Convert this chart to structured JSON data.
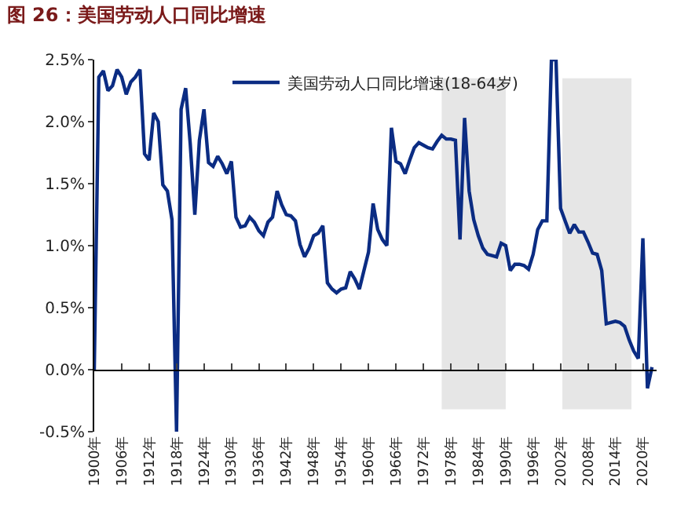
{
  "chart_data": {
    "type": "line",
    "title": "图 26：美国劳动人口同比增速",
    "x": [
      1900,
      1901,
      1902,
      1903,
      1904,
      1905,
      1906,
      1907,
      1908,
      1909,
      1910,
      1911,
      1912,
      1913,
      1914,
      1915,
      1916,
      1917,
      1918,
      1919,
      1920,
      1921,
      1922,
      1923,
      1924,
      1925,
      1926,
      1927,
      1928,
      1929,
      1930,
      1931,
      1932,
      1933,
      1934,
      1935,
      1936,
      1937,
      1938,
      1939,
      1940,
      1941,
      1942,
      1943,
      1944,
      1945,
      1946,
      1947,
      1948,
      1949,
      1950,
      1951,
      1952,
      1953,
      1954,
      1955,
      1956,
      1957,
      1958,
      1959,
      1960,
      1961,
      1962,
      1963,
      1964,
      1965,
      1966,
      1967,
      1968,
      1969,
      1970,
      1971,
      1972,
      1973,
      1974,
      1975,
      1976,
      1977,
      1978,
      1979,
      1980,
      1981,
      1982,
      1983,
      1984,
      1985,
      1986,
      1987,
      1988,
      1989,
      1990,
      1991,
      1992,
      1993,
      1994,
      1995,
      1996,
      1997,
      1998,
      1999,
      2000,
      2001,
      2002,
      2003,
      2004,
      2005,
      2006,
      2007,
      2008,
      2009,
      2010,
      2011,
      2012,
      2013,
      2014,
      2015,
      2016,
      2017,
      2018,
      2019,
      2020,
      2021,
      2022
    ],
    "series": [
      {
        "name": "美国劳动人口同比增速(18-64岁)",
        "color": "#0b2c83",
        "values": [
          0,
          2.36,
          2.41,
          2.25,
          2.29,
          2.42,
          2.36,
          2.22,
          2.32,
          2.36,
          2.42,
          1.74,
          1.69,
          2.07,
          2.0,
          1.49,
          1.44,
          1.21,
          -0.5,
          2.1,
          2.27,
          1.82,
          1.25,
          1.85,
          2.1,
          1.67,
          1.64,
          1.72,
          1.66,
          1.58,
          1.68,
          1.23,
          1.15,
          1.16,
          1.23,
          1.19,
          1.12,
          1.08,
          1.19,
          1.23,
          1.44,
          1.33,
          1.25,
          1.24,
          1.2,
          1.01,
          0.91,
          0.98,
          1.08,
          1.1,
          1.16,
          0.7,
          0.65,
          0.62,
          0.65,
          0.66,
          0.79,
          0.73,
          0.65,
          0.8,
          0.95,
          1.34,
          1.13,
          1.05,
          1.0,
          1.95,
          1.68,
          1.66,
          1.58,
          1.69,
          1.79,
          1.83,
          1.81,
          1.79,
          1.78,
          1.84,
          1.89,
          1.86,
          1.86,
          1.85,
          1.05,
          2.03,
          1.44,
          1.21,
          1.08,
          0.98,
          0.93,
          0.92,
          0.91,
          1.02,
          1.0,
          0.8,
          0.85,
          0.85,
          0.84,
          0.81,
          0.93,
          1.13,
          1.2,
          1.2,
          2.5,
          2.5,
          1.3,
          1.2,
          1.1,
          1.17,
          1.11,
          1.11,
          1.03,
          0.94,
          0.93,
          0.8,
          0.37,
          0.38,
          0.39,
          0.38,
          0.35,
          0.24,
          0.15,
          0.09,
          1.06,
          -0.15,
          0.02
        ]
      }
    ],
    "xlim": [
      1900,
      2023
    ],
    "xticks": [
      {
        "value": 1900,
        "label": "1900年"
      },
      {
        "value": 1906,
        "label": "1906年"
      },
      {
        "value": 1912,
        "label": "1912年"
      },
      {
        "value": 1918,
        "label": "1918年"
      },
      {
        "value": 1924,
        "label": "1924年"
      },
      {
        "value": 1930,
        "label": "1930年"
      },
      {
        "value": 1936,
        "label": "1936年"
      },
      {
        "value": 1942,
        "label": "1942年"
      },
      {
        "value": 1948,
        "label": "1948年"
      },
      {
        "value": 1954,
        "label": "1954年"
      },
      {
        "value": 1960,
        "label": "1960年"
      },
      {
        "value": 1966,
        "label": "1966年"
      },
      {
        "value": 1972,
        "label": "1972年"
      },
      {
        "value": 1978,
        "label": "1978年"
      },
      {
        "value": 1984,
        "label": "1984年"
      },
      {
        "value": 1990,
        "label": "1990年"
      },
      {
        "value": 1996,
        "label": "1996年"
      },
      {
        "value": 2002,
        "label": "2002年"
      },
      {
        "value": 2008,
        "label": "2008年"
      },
      {
        "value": 2014,
        "label": "2014年"
      },
      {
        "value": 2020,
        "label": "2020年"
      }
    ],
    "ylim": [
      -0.5,
      2.5
    ],
    "yticks": [
      {
        "value": -0.5,
        "label": "-0.5%"
      },
      {
        "value": 0,
        "label": "0.0%"
      },
      {
        "value": 0.5,
        "label": "0.5%"
      },
      {
        "value": 1.0,
        "label": "1.0%"
      },
      {
        "value": 1.5,
        "label": "1.5%"
      },
      {
        "value": 2.0,
        "label": "2.0%"
      },
      {
        "value": 2.5,
        "label": "2.5%"
      }
    ],
    "bands": [
      {
        "axis": "x",
        "from": 1976,
        "to": 1990,
        "color": "#e6e6e6"
      },
      {
        "axis": "x",
        "from": 2002.4,
        "to": 2017.5,
        "color": "#e6e6e6"
      }
    ],
    "legend": "top",
    "marker": "none",
    "line_style": "solid"
  }
}
